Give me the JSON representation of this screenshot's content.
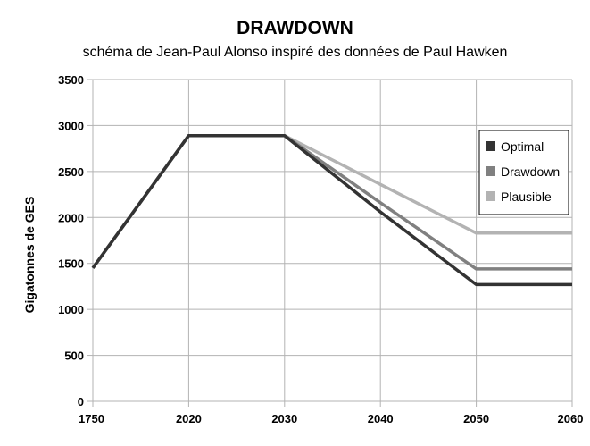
{
  "chart_data": {
    "type": "line",
    "title": "DRAWDOWN",
    "subtitle": "schéma de Jean-Paul Alonso inspiré des données de Paul Hawken",
    "xlabel": "",
    "ylabel": "Gigatonnes de GES",
    "categories": [
      "1750",
      "2020",
      "2030",
      "2040",
      "2050",
      "2060"
    ],
    "ylim": [
      0,
      3500
    ],
    "yticks": [
      0,
      500,
      1000,
      1500,
      2000,
      2500,
      3000,
      3500
    ],
    "grid": true,
    "legend_position": "right",
    "series": [
      {
        "name": "Optimal",
        "color": "#333333",
        "values": [
          1450,
          2890,
          2890,
          2060,
          1270,
          1270
        ]
      },
      {
        "name": "Drawdown",
        "color": "#808080",
        "values": [
          1450,
          2890,
          2890,
          2160,
          1440,
          1440
        ]
      },
      {
        "name": "Plausible",
        "color": "#b3b3b3",
        "values": [
          1450,
          2890,
          2890,
          2360,
          1830,
          1830
        ]
      }
    ]
  }
}
